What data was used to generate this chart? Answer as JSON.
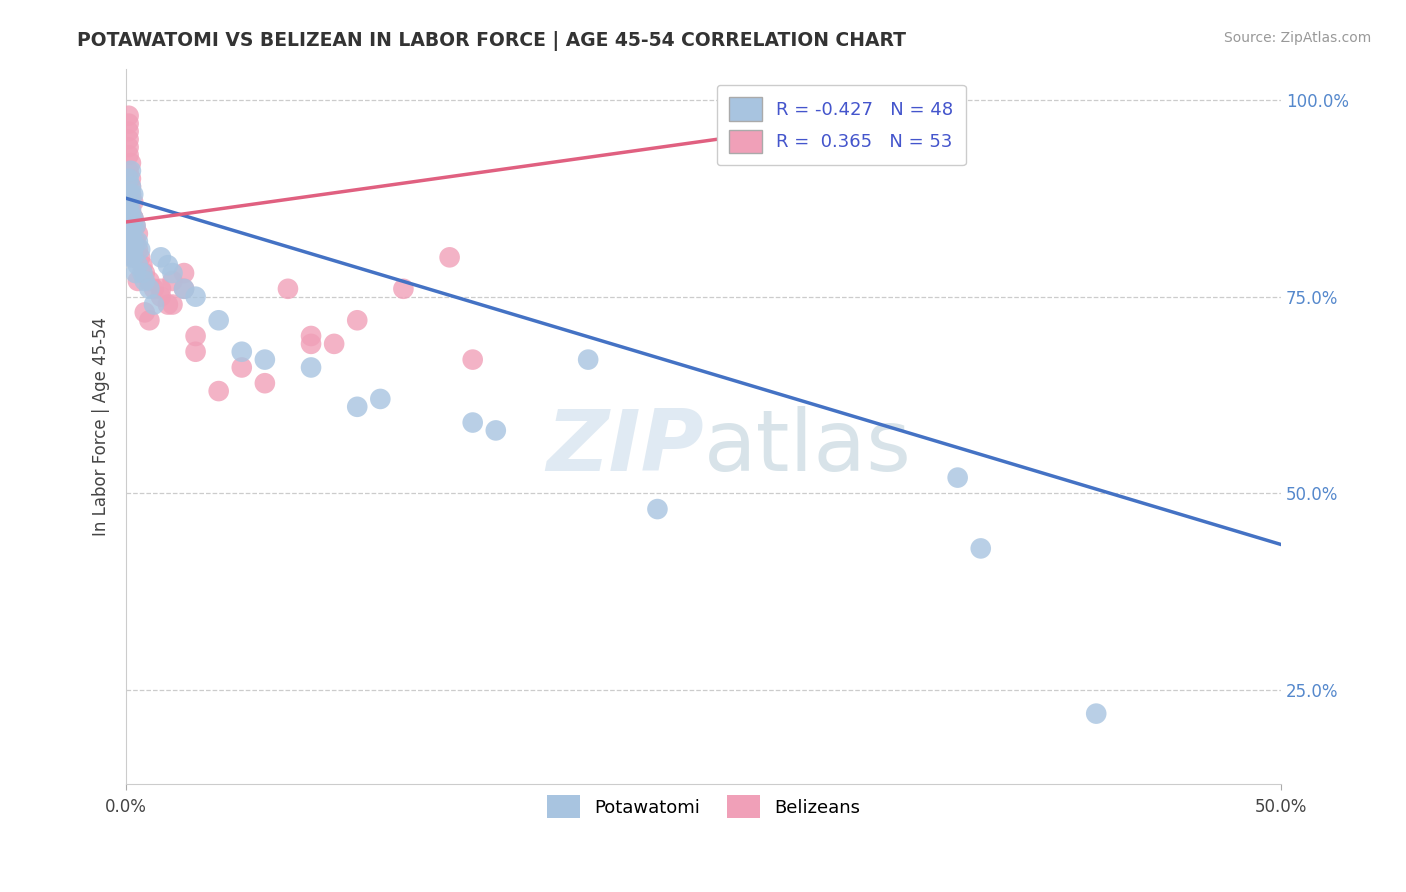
{
  "title": "POTAWATOMI VS BELIZEAN IN LABOR FORCE | AGE 45-54 CORRELATION CHART",
  "source_text": "Source: ZipAtlas.com",
  "ylabel": "In Labor Force | Age 45-54",
  "xlim": [
    0.0,
    0.5
  ],
  "ylim": [
    0.13,
    1.04
  ],
  "xtick_labels": [
    "0.0%",
    "50.0%"
  ],
  "xtick_vals": [
    0.0,
    0.5
  ],
  "ytick_labels": [
    "25.0%",
    "50.0%",
    "75.0%",
    "100.0%"
  ],
  "ytick_vals": [
    0.25,
    0.5,
    0.75,
    1.0
  ],
  "blue_R": -0.427,
  "blue_N": 48,
  "pink_R": 0.365,
  "pink_N": 53,
  "blue_color": "#a8c4e0",
  "pink_color": "#f0a0b8",
  "blue_line_color": "#4472c4",
  "pink_line_color": "#e06080",
  "legend_blue_color": "#a8c4e0",
  "legend_pink_color": "#f0a0b8",
  "blue_x": [
    0.001,
    0.002,
    0.001,
    0.003,
    0.002,
    0.001,
    0.002,
    0.003,
    0.001,
    0.002,
    0.003,
    0.002,
    0.001,
    0.002,
    0.003,
    0.001,
    0.002,
    0.003,
    0.002,
    0.001,
    0.004,
    0.003,
    0.005,
    0.004,
    0.006,
    0.005,
    0.007,
    0.008,
    0.01,
    0.012,
    0.015,
    0.018,
    0.02,
    0.025,
    0.03,
    0.04,
    0.05,
    0.06,
    0.08,
    0.1,
    0.11,
    0.15,
    0.16,
    0.2,
    0.23,
    0.36,
    0.37,
    0.42
  ],
  "blue_y": [
    0.87,
    0.88,
    0.86,
    0.85,
    0.89,
    0.9,
    0.91,
    0.88,
    0.87,
    0.86,
    0.84,
    0.85,
    0.83,
    0.84,
    0.82,
    0.86,
    0.83,
    0.81,
    0.8,
    0.82,
    0.84,
    0.8,
    0.82,
    0.78,
    0.81,
    0.79,
    0.78,
    0.77,
    0.76,
    0.74,
    0.8,
    0.79,
    0.78,
    0.76,
    0.75,
    0.72,
    0.68,
    0.67,
    0.66,
    0.61,
    0.62,
    0.59,
    0.58,
    0.67,
    0.48,
    0.52,
    0.43,
    0.22
  ],
  "pink_x": [
    0.001,
    0.001,
    0.002,
    0.001,
    0.002,
    0.001,
    0.002,
    0.001,
    0.002,
    0.003,
    0.002,
    0.003,
    0.002,
    0.001,
    0.002,
    0.003,
    0.002,
    0.001,
    0.003,
    0.002,
    0.004,
    0.003,
    0.005,
    0.004,
    0.006,
    0.005,
    0.007,
    0.008,
    0.01,
    0.012,
    0.015,
    0.018,
    0.02,
    0.025,
    0.03,
    0.04,
    0.05,
    0.06,
    0.07,
    0.08,
    0.09,
    0.1,
    0.12,
    0.14,
    0.15,
    0.08,
    0.015,
    0.02,
    0.025,
    0.03,
    0.008,
    0.01,
    0.005
  ],
  "pink_y": [
    0.96,
    0.94,
    0.92,
    0.98,
    0.9,
    0.91,
    0.89,
    0.93,
    0.88,
    0.87,
    0.86,
    0.85,
    0.84,
    0.95,
    0.83,
    0.82,
    0.81,
    0.97,
    0.8,
    0.83,
    0.82,
    0.85,
    0.81,
    0.84,
    0.8,
    0.83,
    0.79,
    0.78,
    0.77,
    0.76,
    0.75,
    0.74,
    0.77,
    0.76,
    0.68,
    0.63,
    0.66,
    0.64,
    0.76,
    0.7,
    0.69,
    0.72,
    0.76,
    0.8,
    0.67,
    0.69,
    0.76,
    0.74,
    0.78,
    0.7,
    0.73,
    0.72,
    0.77
  ],
  "blue_trend_x": [
    0.0,
    0.5
  ],
  "blue_trend_y": [
    0.875,
    0.435
  ],
  "pink_trend_x": [
    0.0,
    0.28
  ],
  "pink_trend_y": [
    0.845,
    0.96
  ]
}
